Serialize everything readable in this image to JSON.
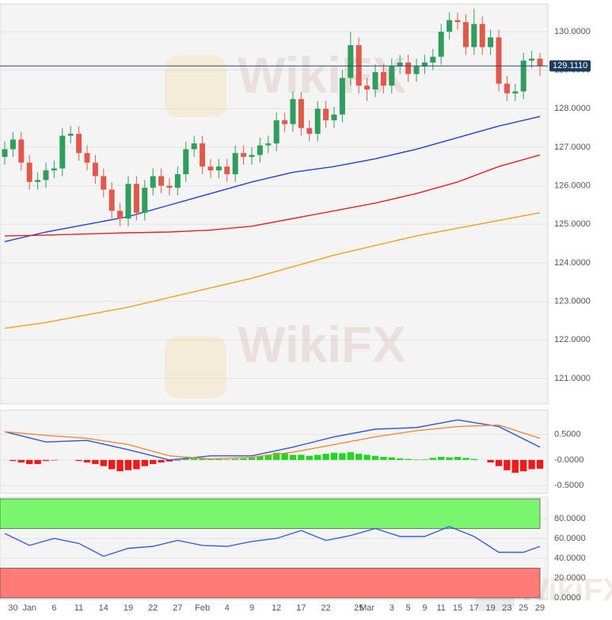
{
  "watermark": "WikiFX",
  "chart_data": [
    {
      "type": "candlestick",
      "categories": [
        null,
        "30",
        null,
        "Jan",
        null,
        null,
        "6",
        null,
        null,
        "11",
        null,
        null,
        "14",
        null,
        null,
        "19",
        null,
        null,
        "22",
        null,
        null,
        "27",
        null,
        null,
        "Feb",
        null,
        null,
        "4",
        null,
        null,
        "9",
        null,
        null,
        "12",
        null,
        null,
        "17",
        null,
        null,
        "22",
        null,
        null,
        null,
        "25",
        "Mar",
        null,
        null,
        "3",
        null,
        "5",
        null,
        "9",
        null,
        "11",
        null,
        "15",
        null,
        "17",
        null,
        "19",
        null,
        "23",
        null,
        "25",
        null,
        "29"
      ],
      "open": [
        126.75,
        126.95,
        127.2,
        126.6,
        126.1,
        126.15,
        126.4,
        126.45,
        127.3,
        127.35,
        126.85,
        126.6,
        126.25,
        125.9,
        125.35,
        125.15,
        126.05,
        125.3,
        125.95,
        126.25,
        126.0,
        125.95,
        126.3,
        126.95,
        127.1,
        126.5,
        126.4,
        126.5,
        126.3,
        126.85,
        126.75,
        126.8,
        127.05,
        127.1,
        127.7,
        127.6,
        128.25,
        127.5,
        127.35,
        128.0,
        127.7,
        127.85,
        128.8,
        129.65,
        128.6,
        128.5,
        128.95,
        128.6,
        129.1,
        129.2,
        128.9,
        129.1,
        129.2,
        129.35,
        130.0,
        130.3,
        130.25,
        129.6,
        130.2,
        129.6,
        129.85,
        128.65,
        128.4,
        128.45,
        129.25,
        129.3
      ],
      "high": [
        127.15,
        127.4,
        127.4,
        126.8,
        126.35,
        126.6,
        126.65,
        127.5,
        127.55,
        127.55,
        127.05,
        126.8,
        126.45,
        126.1,
        125.55,
        126.25,
        126.25,
        126.15,
        126.45,
        126.45,
        126.2,
        126.5,
        127.15,
        127.3,
        127.3,
        126.7,
        126.7,
        126.7,
        127.05,
        127.05,
        127.0,
        127.25,
        127.3,
        127.9,
        127.9,
        128.45,
        128.45,
        127.7,
        128.2,
        128.2,
        128.05,
        129.0,
        130.0,
        129.85,
        128.8,
        129.15,
        129.15,
        129.3,
        129.4,
        129.4,
        129.3,
        129.4,
        129.55,
        130.2,
        130.5,
        130.5,
        130.45,
        130.6,
        130.4,
        130.05,
        130.05,
        128.85,
        128.65,
        129.45,
        129.5,
        129.45
      ],
      "low": [
        126.55,
        126.75,
        126.4,
        125.9,
        125.9,
        125.95,
        126.2,
        126.25,
        127.1,
        126.65,
        126.4,
        126.05,
        125.7,
        125.15,
        124.95,
        124.95,
        125.1,
        125.1,
        125.75,
        125.8,
        125.75,
        125.75,
        126.1,
        126.75,
        126.3,
        126.2,
        126.2,
        126.1,
        126.1,
        126.55,
        126.55,
        126.6,
        126.85,
        126.9,
        127.4,
        127.4,
        127.3,
        127.15,
        127.15,
        127.5,
        127.5,
        127.65,
        128.6,
        128.4,
        128.2,
        128.3,
        128.4,
        128.4,
        128.9,
        128.7,
        128.7,
        128.9,
        129.0,
        129.15,
        129.8,
        130.05,
        129.4,
        129.4,
        129.4,
        129.4,
        128.45,
        128.2,
        128.2,
        128.25,
        129.05,
        128.85
      ],
      "close": [
        126.95,
        127.2,
        126.6,
        126.1,
        126.15,
        126.4,
        126.45,
        127.3,
        127.35,
        126.85,
        126.6,
        126.25,
        125.9,
        125.35,
        125.15,
        126.05,
        125.3,
        125.95,
        126.25,
        126.0,
        125.95,
        126.3,
        126.95,
        127.1,
        126.5,
        126.4,
        126.5,
        126.3,
        126.85,
        126.75,
        126.8,
        127.05,
        127.1,
        127.7,
        127.6,
        128.25,
        127.5,
        127.35,
        128.0,
        127.7,
        127.85,
        128.8,
        129.65,
        128.6,
        128.5,
        128.95,
        128.6,
        129.1,
        129.2,
        128.9,
        129.1,
        129.2,
        129.35,
        130.0,
        130.3,
        130.25,
        129.6,
        130.2,
        129.6,
        129.85,
        128.65,
        128.4,
        128.45,
        129.25,
        129.3,
        129.111
      ],
      "up_color": "#2e9d5e",
      "down_color": "#df5a4c",
      "lines": [
        {
          "color": "#2340d8",
          "x": [
            0,
            5,
            10,
            15,
            20,
            25,
            30,
            35,
            40,
            45,
            50,
            55,
            60,
            65
          ],
          "values": [
            124.55,
            124.8,
            125.0,
            125.2,
            125.5,
            125.8,
            126.1,
            126.35,
            126.5,
            126.7,
            126.95,
            127.25,
            127.55,
            127.8
          ]
        },
        {
          "color": "#e3241f",
          "x": [
            0,
            5,
            10,
            15,
            20,
            25,
            30,
            35,
            40,
            45,
            50,
            55,
            60,
            65
          ],
          "values": [
            124.7,
            124.72,
            124.75,
            124.78,
            124.8,
            124.85,
            124.95,
            125.15,
            125.35,
            125.55,
            125.8,
            126.1,
            126.5,
            126.8
          ]
        },
        {
          "color": "#f5a01a",
          "x": [
            0,
            5,
            10,
            15,
            20,
            25,
            30,
            35,
            40,
            45,
            50,
            55,
            60,
            65
          ],
          "values": [
            122.3,
            122.45,
            122.65,
            122.85,
            123.1,
            123.35,
            123.6,
            123.9,
            124.2,
            124.45,
            124.7,
            124.9,
            125.1,
            125.3
          ]
        }
      ],
      "last_price": {
        "value": 129.111,
        "label": "129.1110"
      },
      "ylim": [
        120.34,
        130.72
      ],
      "yticks": [
        {
          "value": 121,
          "label": "121.0000"
        },
        {
          "value": 122,
          "label": "122.0000"
        },
        {
          "value": 123,
          "label": "123.0000"
        },
        {
          "value": 124,
          "label": "124.0000"
        },
        {
          "value": 125,
          "label": "125.0000"
        },
        {
          "value": 126,
          "label": "126.0000"
        },
        {
          "value": 127,
          "label": "127.0000"
        },
        {
          "value": 128,
          "label": "128.0000"
        },
        {
          "value": 129,
          "label": "129.0000"
        },
        {
          "value": 130,
          "label": "130.0000"
        }
      ],
      "grid": true
    },
    {
      "type": "macd",
      "histogram": [
        0,
        -0.02,
        -0.05,
        -0.08,
        -0.08,
        -0.02,
        -0.01,
        0,
        0,
        -0.02,
        -0.05,
        -0.08,
        -0.12,
        -0.18,
        -0.22,
        -0.2,
        -0.18,
        -0.12,
        -0.08,
        -0.05,
        -0.03,
        -0.01,
        0.02,
        0.03,
        0.03,
        0.02,
        0.02,
        0.01,
        0.02,
        0.03,
        0.05,
        0.07,
        0.1,
        0.14,
        0.13,
        0.1,
        0.1,
        0.08,
        0.1,
        0.12,
        0.14,
        0.13,
        0.15,
        0.12,
        0.1,
        0.08,
        0.06,
        0.05,
        0.03,
        0.02,
        0.01,
        0.01,
        0.04,
        0.06,
        0.05,
        0.06,
        0.04,
        0.02,
        0.0,
        -0.05,
        -0.12,
        -0.2,
        -0.25,
        -0.22,
        -0.18,
        -0.17
      ],
      "up_color": "#22d622",
      "down_color": "#ee1b1b",
      "lines": [
        {
          "color": "#2f55e0",
          "x": [
            0,
            5,
            10,
            15,
            20,
            25,
            30,
            35,
            40,
            45,
            50,
            55,
            60,
            65
          ],
          "values": [
            0.55,
            0.35,
            0.38,
            0.2,
            0.0,
            0.08,
            0.08,
            0.25,
            0.45,
            0.6,
            0.63,
            0.78,
            0.65,
            0.25
          ]
        },
        {
          "color": "#f08a3a",
          "x": [
            0,
            5,
            10,
            15,
            20,
            25,
            30,
            35,
            40,
            45,
            50,
            55,
            60,
            65
          ],
          "values": [
            0.55,
            0.48,
            0.42,
            0.3,
            0.08,
            0.02,
            0.05,
            0.15,
            0.3,
            0.45,
            0.57,
            0.65,
            0.68,
            0.42
          ]
        }
      ],
      "ylim": [
        -0.65,
        0.97
      ],
      "yticks": [
        {
          "value": 0.5,
          "label": "0.5000"
        },
        {
          "value": 0,
          "label": "-0.0000"
        },
        {
          "value": -0.5,
          "label": "-0.5000"
        }
      ],
      "grid": true
    },
    {
      "type": "rsi",
      "lines": [
        {
          "color": "#3b5ee0",
          "x": [
            0,
            3,
            6,
            9,
            12,
            15,
            18,
            21,
            24,
            27,
            30,
            33,
            36,
            39,
            42,
            45,
            48,
            51,
            54,
            57,
            60,
            63,
            65
          ],
          "values": [
            65,
            53,
            60,
            55,
            42,
            50,
            52,
            58,
            53,
            52,
            57,
            60,
            68,
            58,
            63,
            70,
            62,
            62,
            72,
            62,
            46,
            46,
            52
          ]
        }
      ],
      "bands": [
        {
          "from": 70,
          "to": 100,
          "color": "#7cf56e"
        },
        {
          "from": 0,
          "to": 30,
          "color": "#ff7b78"
        }
      ],
      "ylim": [
        -1.6,
        101.6
      ],
      "yticks": [
        {
          "value": 0,
          "label": "0.0000"
        },
        {
          "value": 20,
          "label": "20.0000"
        },
        {
          "value": 40,
          "label": "40.0000"
        },
        {
          "value": 60,
          "label": "60.0000"
        },
        {
          "value": 80,
          "label": "80.0000"
        }
      ],
      "grid": true
    }
  ]
}
